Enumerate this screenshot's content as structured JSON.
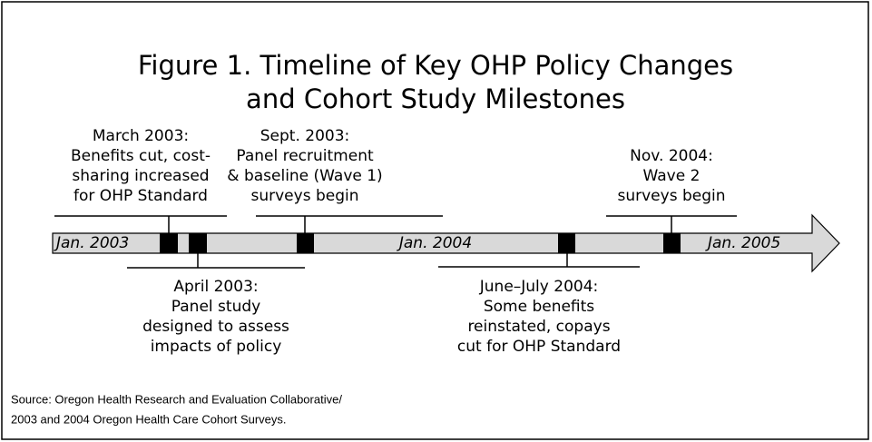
{
  "title": [
    "Figure 1. Timeline of Key OHP Policy Changes",
    "and Cohort Study Milestones"
  ],
  "timeline_labels": [
    "Jan. 2003",
    "Jan. 2004",
    "Jan. 2005"
  ],
  "events_above": [
    {
      "lines": [
        "March 2003:",
        "Benefits cut, cost-",
        "sharing increased",
        "for OHP Standard"
      ]
    },
    {
      "lines": [
        "Sept. 2003:",
        "Panel recruitment",
        "& baseline (Wave 1)",
        "surveys begin"
      ]
    },
    {
      "lines": [
        "Nov. 2004:",
        "Wave 2",
        "surveys begin"
      ]
    }
  ],
  "events_below": [
    {
      "lines": [
        "April 2003:",
        "Panel study",
        "designed to assess",
        "impacts of policy"
      ]
    },
    {
      "lines": [
        "June–July 2004:",
        "Some benefits",
        "reinstated, copays",
        "cut for OHP Standard"
      ]
    }
  ],
  "source": [
    "Source: Oregon Health Research and Evaluation Collaborative/",
    "2003 and 2004 Oregon Health Care Cohort Surveys."
  ]
}
